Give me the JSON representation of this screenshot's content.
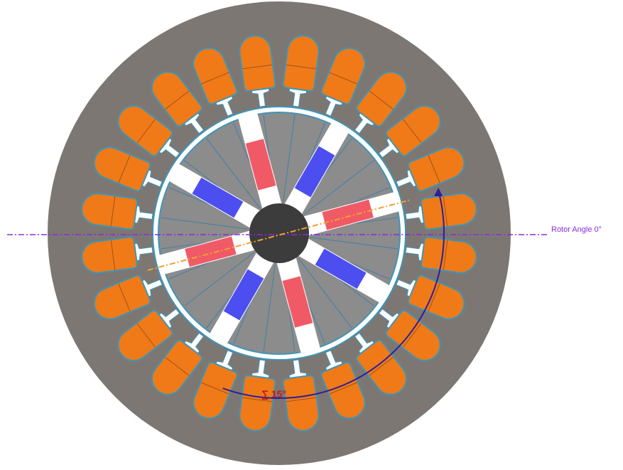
{
  "labels": {
    "reference_line": "Rotor Angle 0°",
    "angle": "∑ 15°"
  },
  "colors": {
    "stator": "#7d7773",
    "slot": "#f07a18",
    "slot_outline": "#3f95b6",
    "rotor": "#8c8c8c",
    "rotor_outline": "#3f95b6",
    "shaft": "#3c3c3c",
    "magnet_north": "#f05a66",
    "magnet_south": "#4c4ef0",
    "barrier": "#ffffff",
    "reference_line": "#8a2be2",
    "d_axis_line": "#f0a030",
    "angle_arc": "#2a1f9e",
    "angle_text": "#c21a1a"
  },
  "diagram": {
    "slot_count": 24,
    "pole_count": 8,
    "d_axis_deg": 15,
    "pole_colors": [
      "north",
      "south",
      "north",
      "south",
      "north",
      "south",
      "north",
      "south"
    ]
  }
}
